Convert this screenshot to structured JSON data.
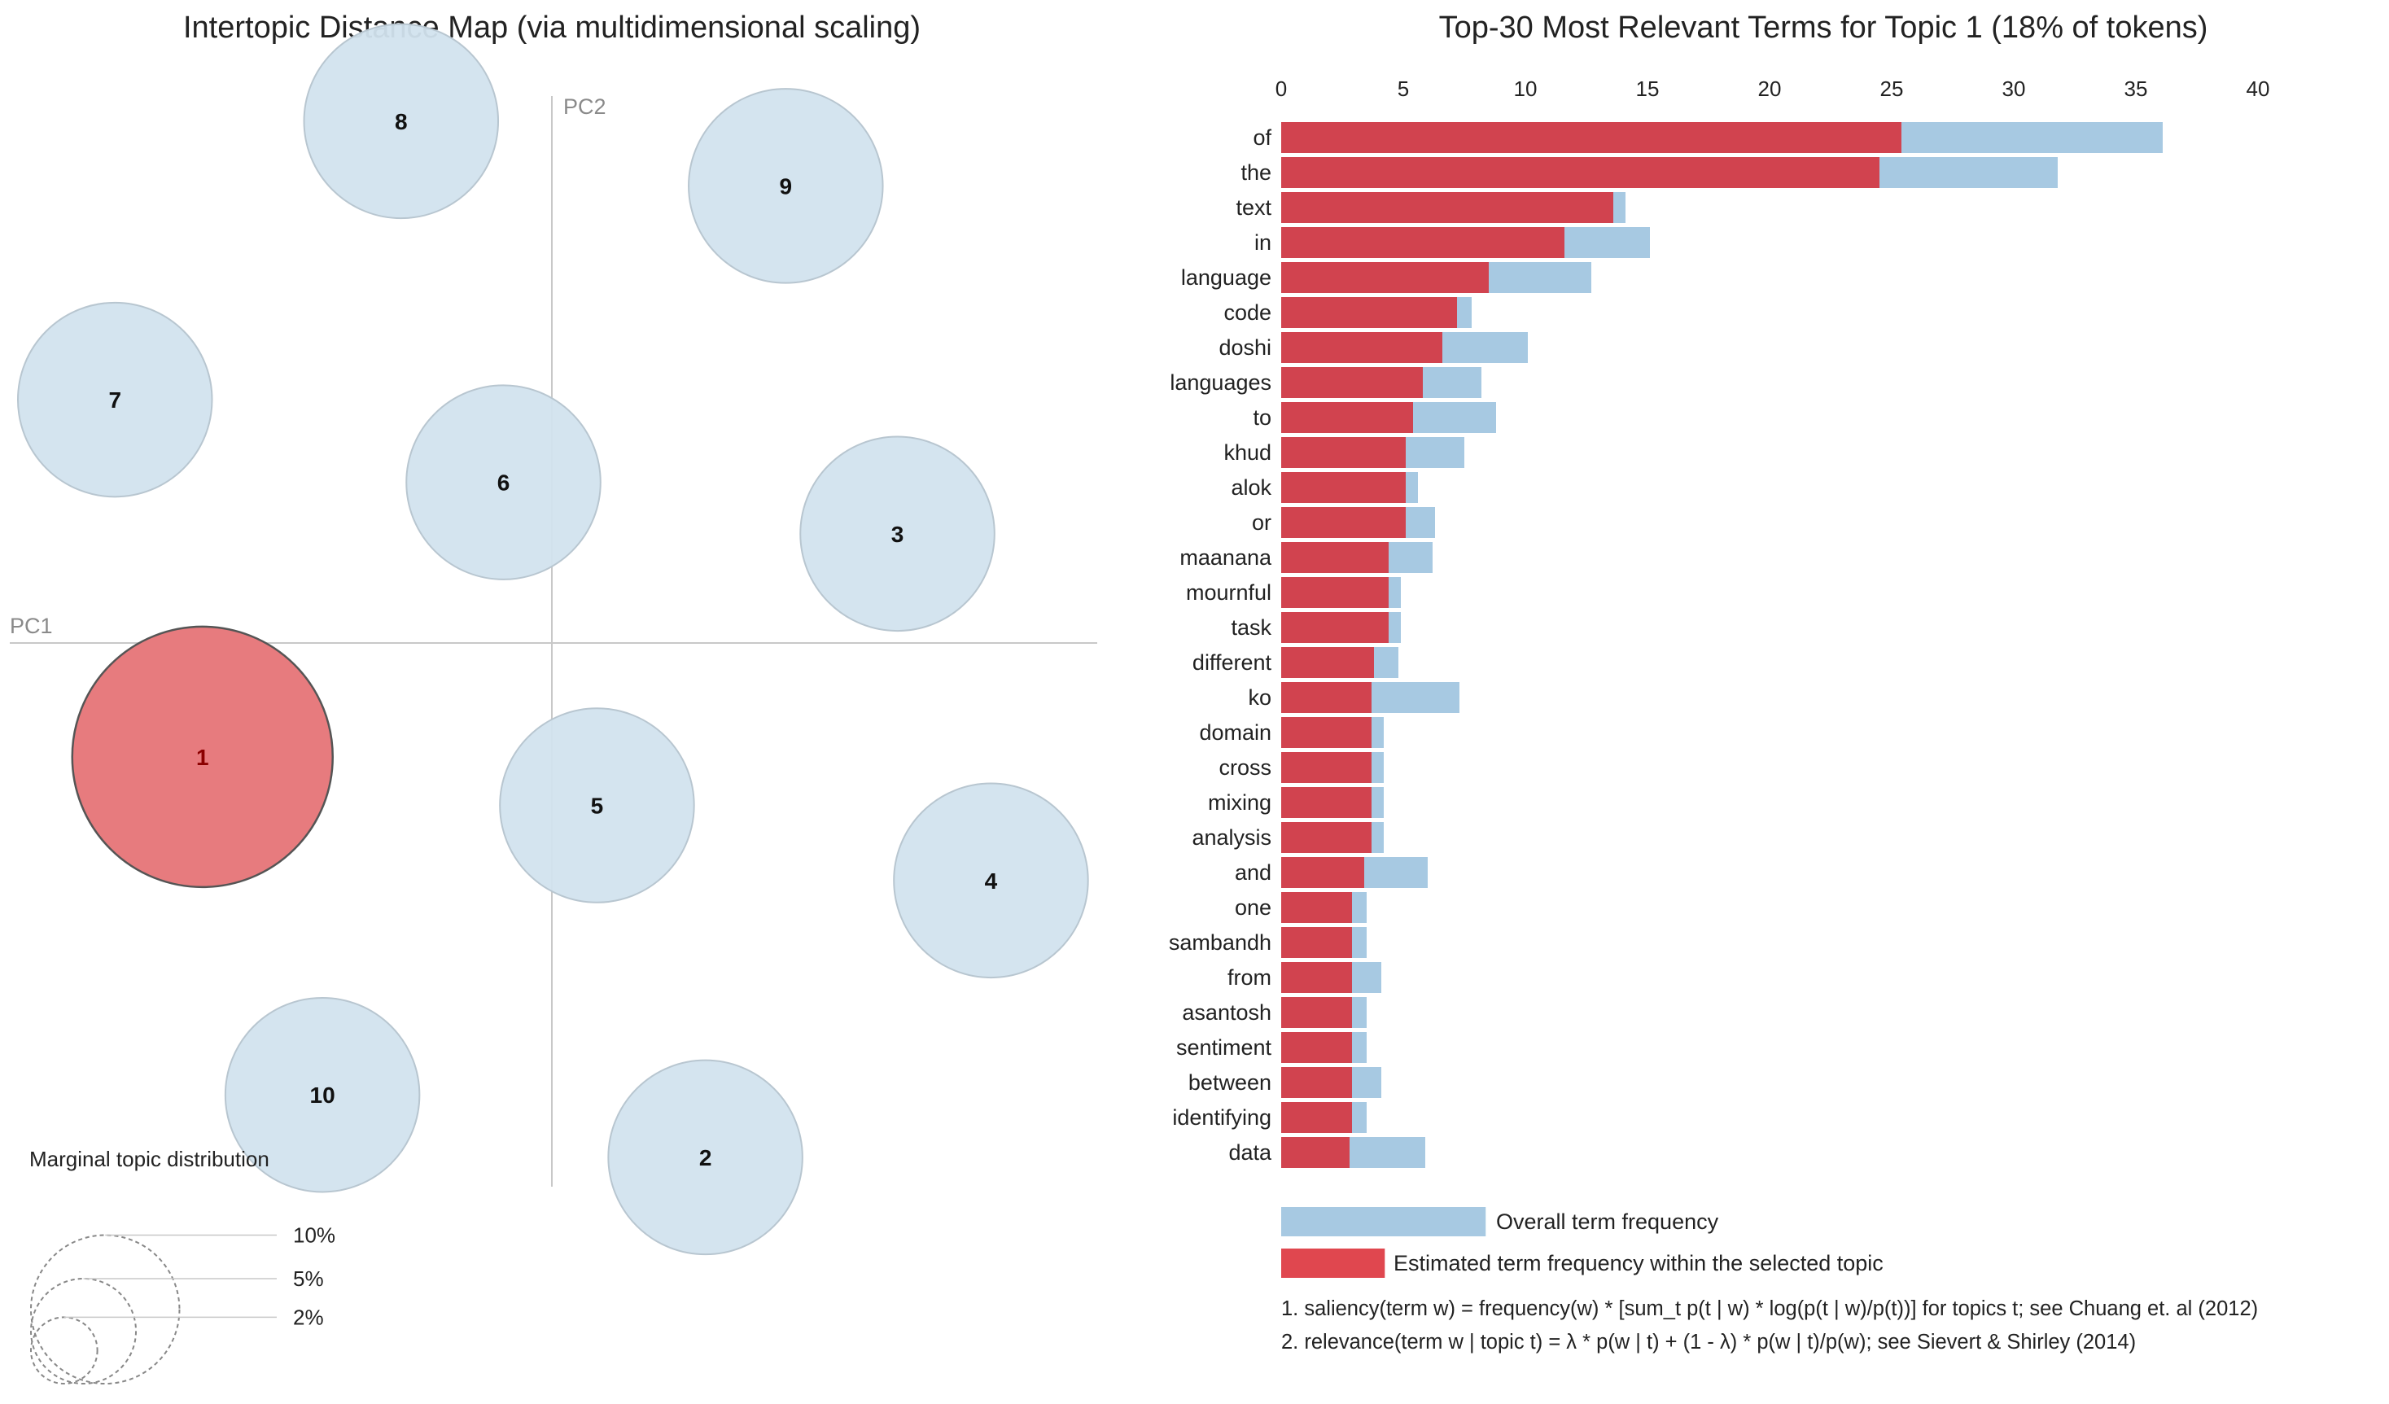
{
  "chart_data": [
    {
      "type": "scatter",
      "title": "Intertopic Distance Map (via multidimensional scaling)",
      "xlabel": "PC1",
      "ylabel": "PC2",
      "xlim": [
        -1,
        1
      ],
      "ylim": [
        -1,
        1
      ],
      "selected_topic": "1",
      "colors": {
        "default": "#d2e3ee",
        "default_stroke": "#b8c6d0",
        "selected": "#e77b7e",
        "selected_stroke": "#555555"
      },
      "topics": [
        {
          "label": "1",
          "x": -0.635,
          "y": -0.197,
          "share": 18
        },
        {
          "label": "2",
          "x": 0.279,
          "y": -0.89,
          "share": 10
        },
        {
          "label": "3",
          "x": 0.628,
          "y": 0.189,
          "share": 10
        },
        {
          "label": "4",
          "x": 0.798,
          "y": -0.411,
          "share": 10
        },
        {
          "label": "5",
          "x": 0.082,
          "y": -0.281,
          "share": 10
        },
        {
          "label": "6",
          "x": -0.088,
          "y": 0.278,
          "share": 10
        },
        {
          "label": "7",
          "x": -0.794,
          "y": 0.421,
          "share": 10
        },
        {
          "label": "8",
          "x": -0.274,
          "y": 0.903,
          "share": 10
        },
        {
          "label": "9",
          "x": 0.425,
          "y": 0.791,
          "share": 10
        },
        {
          "label": "10",
          "x": -0.417,
          "y": -0.782,
          "share": 10
        }
      ],
      "marginal": {
        "title": "Marginal topic distribution",
        "levels": [
          {
            "label": "2%",
            "share": 2
          },
          {
            "label": "5%",
            "share": 5
          },
          {
            "label": "10%",
            "share": 10
          }
        ]
      }
    },
    {
      "type": "bar",
      "orientation": "horizontal",
      "title": "Top-30 Most Relevant Terms for Topic 1 (18% of tokens)",
      "xlim": [
        0,
        40
      ],
      "xticks": [
        0,
        5,
        10,
        15,
        20,
        25,
        30,
        35,
        40
      ],
      "categories": [
        "of",
        "the",
        "text",
        "in",
        "language",
        "code",
        "doshi",
        "languages",
        "to",
        "khud",
        "alok",
        "or",
        "maanana",
        "mournful",
        "task",
        "different",
        "ko",
        "domain",
        "cross",
        "mixing",
        "analysis",
        "and",
        "one",
        "sambandh",
        "from",
        "asantosh",
        "sentiment",
        "between",
        "identifying",
        "data"
      ],
      "series": [
        {
          "name": "Overall term frequency",
          "color": "#a7c9e2",
          "values": [
            36.1,
            31.8,
            14.1,
            15.1,
            12.7,
            7.8,
            10.1,
            8.2,
            8.8,
            7.5,
            5.6,
            6.3,
            6.2,
            4.9,
            4.9,
            4.8,
            7.3,
            4.2,
            4.2,
            4.2,
            4.2,
            6.0,
            3.5,
            3.5,
            4.1,
            3.5,
            3.5,
            4.1,
            3.5,
            5.9
          ]
        },
        {
          "name": "Estimated term frequency within the selected topic",
          "color": "#d1434f",
          "values": [
            25.4,
            24.5,
            13.6,
            11.6,
            8.5,
            7.2,
            6.6,
            5.8,
            5.4,
            5.1,
            5.1,
            5.1,
            4.4,
            4.4,
            4.4,
            3.8,
            3.7,
            3.7,
            3.7,
            3.7,
            3.7,
            3.4,
            2.9,
            2.9,
            2.9,
            2.9,
            2.9,
            2.9,
            2.9,
            2.8
          ]
        }
      ],
      "legend": [
        {
          "label": "Overall term frequency",
          "color": "#a7c9e2",
          "value": 7.5
        },
        {
          "label": "Estimated term frequency within the selected topic",
          "color": "#e0474f",
          "value": 3.8
        }
      ],
      "footnotes": [
        "1. saliency(term w) = frequency(w) * [sum_t p(t | w) * log(p(t | w)/p(t))] for topics t; see Chuang et. al (2012)",
        "2. relevance(term w | topic t) = λ * p(w | t) + (1 - λ) * p(w | t)/p(w); see Sievert & Shirley (2014)"
      ]
    }
  ]
}
